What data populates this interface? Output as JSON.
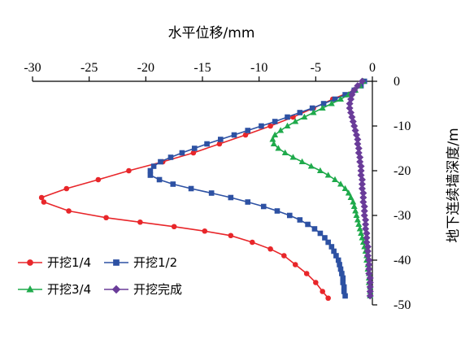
{
  "chart_data": {
    "type": "line",
    "title": "水平位移/mm",
    "xlabel": "水平位移/mm",
    "ylabel": "地下连续墙深度/m",
    "xlim": [
      -30,
      0
    ],
    "ylim": [
      -50,
      0
    ],
    "xticks": [
      -30,
      -25,
      -20,
      -15,
      -10,
      -5,
      0
    ],
    "yticks": [
      0,
      -10,
      -20,
      -30,
      -40,
      -50
    ],
    "x_axis_position": "top",
    "y_axis_position": "right",
    "grid": false,
    "legend_placement": "bottom-left",
    "series": [
      {
        "name": "开挖1/4",
        "color": "#e8262a",
        "marker": "circle",
        "points": [
          [
            -0.8,
            0
          ],
          [
            -1.6,
            -2
          ],
          [
            -3.5,
            -4
          ],
          [
            -5.2,
            -6
          ],
          [
            -7.0,
            -8
          ],
          [
            -9.0,
            -10
          ],
          [
            -11.2,
            -12
          ],
          [
            -13.5,
            -14
          ],
          [
            -15.8,
            -16
          ],
          [
            -18.5,
            -18
          ],
          [
            -21.5,
            -20
          ],
          [
            -24.2,
            -22
          ],
          [
            -27.0,
            -24
          ],
          [
            -29.2,
            -26
          ],
          [
            -29.0,
            -27
          ],
          [
            -26.8,
            -29
          ],
          [
            -23.5,
            -30.5
          ],
          [
            -20.5,
            -31.5
          ],
          [
            -17.5,
            -32.5
          ],
          [
            -14.8,
            -33.5
          ],
          [
            -12.5,
            -34.5
          ],
          [
            -10.6,
            -36
          ],
          [
            -9.0,
            -37.5
          ],
          [
            -7.8,
            -39
          ],
          [
            -6.8,
            -41
          ],
          [
            -5.8,
            -43
          ],
          [
            -5.0,
            -45
          ],
          [
            -4.4,
            -47
          ],
          [
            -3.9,
            -48.5
          ]
        ]
      },
      {
        "name": "开挖1/2",
        "color": "#2d51a3",
        "marker": "square",
        "points": [
          [
            -0.7,
            0
          ],
          [
            -1.0,
            -1
          ],
          [
            -1.6,
            -2
          ],
          [
            -2.4,
            -3
          ],
          [
            -3.3,
            -4
          ],
          [
            -4.3,
            -5
          ],
          [
            -5.3,
            -6
          ],
          [
            -6.4,
            -7
          ],
          [
            -7.5,
            -8
          ],
          [
            -8.6,
            -9
          ],
          [
            -9.8,
            -10
          ],
          [
            -11.0,
            -11
          ],
          [
            -12.2,
            -12
          ],
          [
            -13.4,
            -13
          ],
          [
            -14.6,
            -14
          ],
          [
            -15.7,
            -15
          ],
          [
            -16.8,
            -16
          ],
          [
            -17.8,
            -17
          ],
          [
            -18.7,
            -18
          ],
          [
            -19.3,
            -19
          ],
          [
            -19.6,
            -20
          ],
          [
            -19.6,
            -21
          ],
          [
            -18.8,
            -22
          ],
          [
            -17.6,
            -23
          ],
          [
            -16.0,
            -24
          ],
          [
            -14.2,
            -25
          ],
          [
            -12.5,
            -26
          ],
          [
            -11.0,
            -27
          ],
          [
            -9.6,
            -28
          ],
          [
            -8.4,
            -29
          ],
          [
            -7.3,
            -30
          ],
          [
            -6.4,
            -31
          ],
          [
            -5.7,
            -32
          ],
          [
            -5.1,
            -33
          ],
          [
            -4.6,
            -34
          ],
          [
            -4.2,
            -35
          ],
          [
            -3.9,
            -36
          ],
          [
            -3.6,
            -37
          ],
          [
            -3.4,
            -38
          ],
          [
            -3.2,
            -39
          ],
          [
            -3.0,
            -40
          ],
          [
            -2.9,
            -41
          ],
          [
            -2.8,
            -42
          ],
          [
            -2.7,
            -43
          ],
          [
            -2.6,
            -44
          ],
          [
            -2.6,
            -45
          ],
          [
            -2.5,
            -46
          ],
          [
            -2.5,
            -47
          ],
          [
            -2.4,
            -48
          ]
        ]
      },
      {
        "name": "开挖3/4",
        "color": "#1faa4b",
        "marker": "triangle",
        "points": [
          [
            -0.8,
            0
          ],
          [
            -1.1,
            -1
          ],
          [
            -1.5,
            -2
          ],
          [
            -2.1,
            -3
          ],
          [
            -2.8,
            -4
          ],
          [
            -3.6,
            -5
          ],
          [
            -4.4,
            -6
          ],
          [
            -5.2,
            -7
          ],
          [
            -6.0,
            -8
          ],
          [
            -6.8,
            -9
          ],
          [
            -7.5,
            -10
          ],
          [
            -8.1,
            -11
          ],
          [
            -8.6,
            -12
          ],
          [
            -8.8,
            -13
          ],
          [
            -8.7,
            -14
          ],
          [
            -8.3,
            -15
          ],
          [
            -7.7,
            -16
          ],
          [
            -7.0,
            -17
          ],
          [
            -6.2,
            -18
          ],
          [
            -5.4,
            -19
          ],
          [
            -4.6,
            -20
          ],
          [
            -3.9,
            -21
          ],
          [
            -3.3,
            -22
          ],
          [
            -2.8,
            -23
          ],
          [
            -2.4,
            -24
          ],
          [
            -2.1,
            -25
          ],
          [
            -1.9,
            -26
          ],
          [
            -1.7,
            -27
          ],
          [
            -1.6,
            -28
          ],
          [
            -1.5,
            -29
          ],
          [
            -1.4,
            -30
          ],
          [
            -1.3,
            -31
          ],
          [
            -1.2,
            -32
          ],
          [
            -1.1,
            -33
          ],
          [
            -1.0,
            -34
          ],
          [
            -0.9,
            -35
          ],
          [
            -0.8,
            -36
          ],
          [
            -0.7,
            -37
          ],
          [
            -0.6,
            -38
          ],
          [
            -0.5,
            -39
          ],
          [
            -0.5,
            -40
          ],
          [
            -0.4,
            -41
          ],
          [
            -0.4,
            -42
          ],
          [
            -0.3,
            -43
          ],
          [
            -0.3,
            -44
          ],
          [
            -0.3,
            -45
          ],
          [
            -0.2,
            -46
          ],
          [
            -0.2,
            -47
          ],
          [
            -0.2,
            -48
          ]
        ]
      },
      {
        "name": "开挖完成",
        "color": "#6a3c99",
        "marker": "diamond",
        "points": [
          [
            -0.9,
            0
          ],
          [
            -1.3,
            -1
          ],
          [
            -1.6,
            -2
          ],
          [
            -1.8,
            -3
          ],
          [
            -1.9,
            -4
          ],
          [
            -2.0,
            -5
          ],
          [
            -2.0,
            -6
          ],
          [
            -1.9,
            -7
          ],
          [
            -1.8,
            -8
          ],
          [
            -1.7,
            -9
          ],
          [
            -1.6,
            -10
          ],
          [
            -1.5,
            -11
          ],
          [
            -1.4,
            -12
          ],
          [
            -1.3,
            -13
          ],
          [
            -1.3,
            -14
          ],
          [
            -1.2,
            -15
          ],
          [
            -1.2,
            -16
          ],
          [
            -1.1,
            -17
          ],
          [
            -1.1,
            -18
          ],
          [
            -1.0,
            -19
          ],
          [
            -1.0,
            -20
          ],
          [
            -1.0,
            -21
          ],
          [
            -0.9,
            -22
          ],
          [
            -0.9,
            -23
          ],
          [
            -0.9,
            -24
          ],
          [
            -0.8,
            -25
          ],
          [
            -0.8,
            -26
          ],
          [
            -0.8,
            -27
          ],
          [
            -0.7,
            -28
          ],
          [
            -0.7,
            -29
          ],
          [
            -0.7,
            -30
          ],
          [
            -0.6,
            -31
          ],
          [
            -0.6,
            -32
          ],
          [
            -0.6,
            -33
          ],
          [
            -0.5,
            -34
          ],
          [
            -0.5,
            -35
          ],
          [
            -0.5,
            -36
          ],
          [
            -0.4,
            -37
          ],
          [
            -0.4,
            -38
          ],
          [
            -0.4,
            -39
          ],
          [
            -0.3,
            -40
          ],
          [
            -0.3,
            -41
          ],
          [
            -0.3,
            -42
          ],
          [
            -0.3,
            -43
          ],
          [
            -0.2,
            -44
          ],
          [
            -0.2,
            -45
          ],
          [
            -0.2,
            -46
          ],
          [
            -0.2,
            -47
          ],
          [
            -0.2,
            -48
          ]
        ]
      }
    ]
  }
}
